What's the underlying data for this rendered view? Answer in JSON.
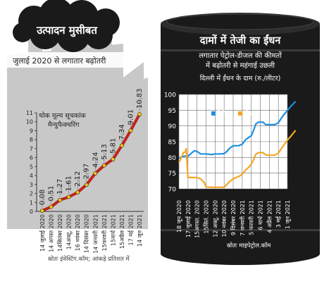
{
  "left_panel": {
    "title": "उत्पादन मुसीबत",
    "subtitle": "जुलाई 2020 से लगातार बढ़ोतरी",
    "chart_label_line1": "थोक मूल्य सूचकांक",
    "chart_label_line2": "मैन्युफैक्चरिंग"
  },
  "right_panel": {
    "title": "दामों में तेजी का ईंधन",
    "subtitle_line1": "लगातार पेट्रोल-डीजल की कीमतों",
    "subtitle_line2": "में बढ़ोतरी से महंगाई उछली",
    "chart_caption": "दिल्ली में ईंधन के दाम (रु./लीटर)"
  },
  "footer": {
    "left_source": "स्रोतः इंवेस्टिंग.कॉम; आंकड़े प्रतिशत में",
    "right_source": "स्रोतः माइपेट्रोल.कॉम"
  },
  "colors": {
    "orange_accent": "#f5a623",
    "drum_dark": "#1a1a1a",
    "wpi_line": "#c0241b",
    "petrol": "#1e90e0",
    "diesel": "#f5a623",
    "factory_gray": "#c8c8c8"
  },
  "chart_data": [
    {
      "type": "line",
      "title": "थोक मूल्य सूचकांक मैन्युफैक्चरिंग",
      "categories": [
        "14 जुलाई 2020",
        "14 अगस्त 2020",
        "14सितंबर 2020",
        "14अक्टू, 2020",
        "16 नवंबर 2020",
        "14 दिसंबर 2020",
        "14 जनवरी 2021",
        "15फरवरी 2021",
        "15मार्च 2021",
        "15अप्रैल 2021",
        "17 मई 2021",
        "14 जून 2021"
      ],
      "values": [
        0.08,
        0.51,
        1.27,
        1.61,
        2.12,
        2.97,
        4.24,
        5.13,
        5.81,
        7.34,
        9.01,
        10.83
      ],
      "value_labels": [
        "0.08",
        "0.51",
        "1.27",
        "1.61",
        "2.12",
        "2.97",
        "4.24",
        "5.13",
        "5.81",
        "7.34",
        "9.01",
        "10.83"
      ],
      "yticks": [
        0,
        1,
        2,
        3,
        4,
        5,
        6,
        7,
        8,
        9,
        10,
        11
      ],
      "ylim": [
        0,
        11
      ],
      "grid": false
    },
    {
      "type": "line",
      "title": "दिल्ली में ईंधन के दाम (रु./लीटर)",
      "ylim": [
        70,
        100
      ],
      "yticks": [
        70,
        75,
        80,
        85,
        90,
        95,
        100
      ],
      "grid": true,
      "legend_position": "top-left",
      "x_labels": [
        "18 जून 2020",
        "17 जुलाई 2020",
        "15अगस्त. 2020",
        "15सितं. 2020",
        "12 अक्टू. 2020",
        "10 नवंबर 2020",
        "9 दिसंबर 2020",
        "7 जनवरी 2021",
        "5 फरवरी 2021",
        "6 मार्च 2021",
        "4 अप्रैल 2021",
        "3 मई 2021",
        "1 जून 2021"
      ],
      "series": [
        {
          "name": "पेट्रोल",
          "color": "#1e90e0",
          "points": [
            [
              0,
              79.8
            ],
            [
              0.6,
              80.4
            ],
            [
              1,
              80.4
            ],
            [
              1.7,
              82.1
            ],
            [
              2,
              81.9
            ],
            [
              2.4,
              81.1
            ],
            [
              3,
              81.1
            ],
            [
              3.6,
              80.9
            ],
            [
              4,
              81.1
            ],
            [
              4.5,
              81.1
            ],
            [
              5,
              81.2
            ],
            [
              5.3,
              81.9
            ],
            [
              5.6,
              82.9
            ],
            [
              6,
              83.7
            ],
            [
              6.6,
              83.7
            ],
            [
              7,
              84.2
            ],
            [
              7.4,
              85.7
            ],
            [
              7.7,
              86.3
            ],
            [
              8,
              86.9
            ],
            [
              8.3,
              88.9
            ],
            [
              8.5,
              90.6
            ],
            [
              8.8,
              91.2
            ],
            [
              9.3,
              91.2
            ],
            [
              9.6,
              90.4
            ],
            [
              10,
              90.4
            ],
            [
              10.6,
              90.4
            ],
            [
              11,
              91.0
            ],
            [
              11.5,
              93.2
            ],
            [
              12,
              94.9
            ],
            [
              12.4,
              96.3
            ],
            [
              12.9,
              97.8
            ]
          ]
        },
        {
          "name": "डीजल",
          "color": "#f5a623",
          "points": [
            [
              0,
              78.3
            ],
            [
              0.3,
              80.2
            ],
            [
              0.5,
              81.6
            ],
            [
              0.7,
              81.7
            ],
            [
              0.8,
              82.8
            ],
            [
              1,
              73.6
            ],
            [
              1.6,
              73.6
            ],
            [
              2,
              73.6
            ],
            [
              2.4,
              73.2
            ],
            [
              2.8,
              72.0
            ],
            [
              3,
              70.6
            ],
            [
              3.5,
              70.5
            ],
            [
              4,
              70.5
            ],
            [
              4.6,
              70.5
            ],
            [
              5,
              70.5
            ],
            [
              5.3,
              71.4
            ],
            [
              5.6,
              72.3
            ],
            [
              6,
              73.2
            ],
            [
              6.6,
              73.9
            ],
            [
              7,
              74.6
            ],
            [
              7.4,
              76.1
            ],
            [
              7.7,
              76.8
            ],
            [
              8,
              77.8
            ],
            [
              8.3,
              79.6
            ],
            [
              8.5,
              81.0
            ],
            [
              8.8,
              81.5
            ],
            [
              9.3,
              81.5
            ],
            [
              9.6,
              80.8
            ],
            [
              10,
              80.7
            ],
            [
              10.6,
              80.7
            ],
            [
              11,
              81.4
            ],
            [
              11.5,
              83.5
            ],
            [
              12,
              85.5
            ],
            [
              12.4,
              86.8
            ],
            [
              12.9,
              88.6
            ]
          ]
        }
      ]
    }
  ]
}
